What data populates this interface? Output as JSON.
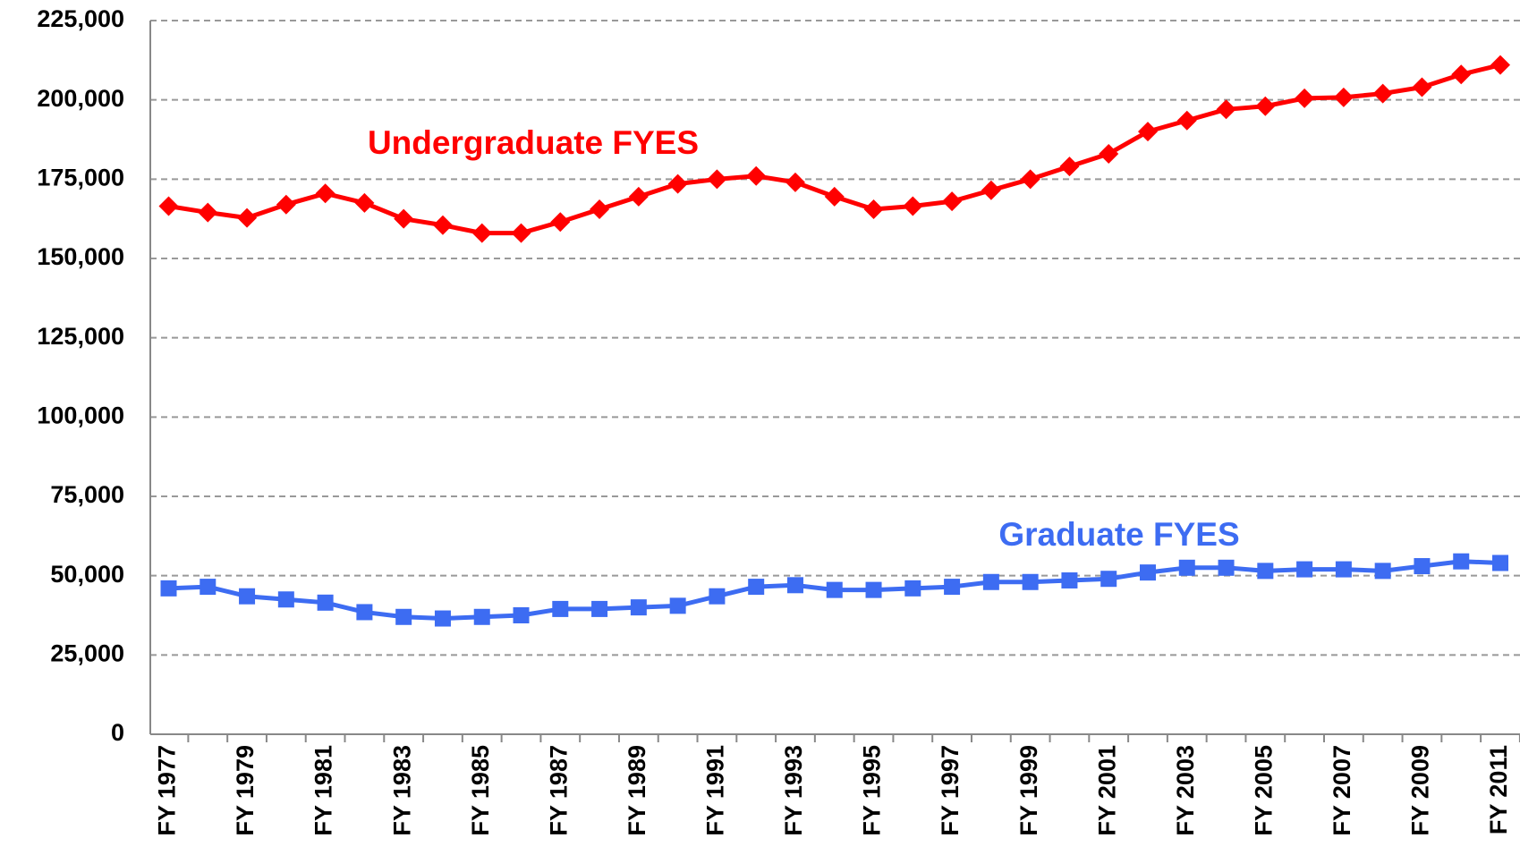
{
  "chart_data": {
    "type": "line",
    "categories": [
      "FY 1977",
      null,
      "FY 1979",
      null,
      "FY 1981",
      null,
      "FY 1983",
      null,
      "FY 1985",
      null,
      "FY 1987",
      null,
      "FY 1989",
      null,
      "FY 1991",
      null,
      "FY 1993",
      null,
      "FY 1995",
      null,
      "FY 1997",
      null,
      "FY 1999",
      null,
      "FY 2001",
      null,
      "FY 2003",
      null,
      "FY 2005",
      null,
      "FY 2007",
      null,
      "FY 2009",
      null,
      "FY 2011"
    ],
    "series": [
      {
        "name": "Undergraduate FYES",
        "color": "#ff0000",
        "marker": "diamond",
        "values": [
          166500,
          164500,
          162800,
          167000,
          170500,
          167500,
          162500,
          160500,
          158000,
          158000,
          161500,
          165500,
          169500,
          173500,
          175000,
          176000,
          174000,
          169500,
          165500,
          166500,
          168000,
          171500,
          175000,
          179000,
          183000,
          190000,
          193500,
          197000,
          198000,
          200500,
          200800,
          202000,
          204000,
          208000,
          211000
        ]
      },
      {
        "name": "Graduate FYES",
        "color": "#3d6cf2",
        "marker": "square",
        "values": [
          46000,
          46500,
          43500,
          42500,
          41500,
          38500,
          37000,
          36500,
          37000,
          37500,
          39500,
          39500,
          40000,
          40500,
          43500,
          46500,
          47000,
          45500,
          45500,
          46000,
          46500,
          48000,
          48000,
          48500,
          49000,
          51000,
          52500,
          52500,
          51500,
          52000,
          52000,
          51500,
          53000,
          54500,
          54000
        ]
      }
    ],
    "ylim": [
      0,
      225000
    ],
    "yticks": [
      0,
      {
        "value": 25000,
        "label": "25,000"
      },
      {
        "value": 50000,
        "label": "50,000"
      },
      {
        "value": 75000,
        "label": "75,000"
      },
      {
        "value": 100000,
        "label": "100,000"
      },
      {
        "value": 125000,
        "label": "125,000"
      },
      {
        "value": 150000,
        "label": "150,000"
      },
      {
        "value": 175000,
        "label": "175,000"
      },
      {
        "value": 200000,
        "label": "200,000"
      },
      {
        "value": 225000,
        "label": "225,000"
      }
    ],
    "grid": true
  }
}
